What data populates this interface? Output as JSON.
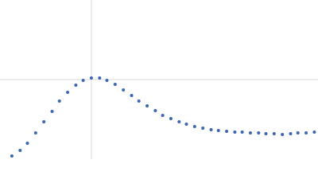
{
  "chart_data": {
    "type": "scatter",
    "x": [
      0.13,
      0.22,
      0.3,
      0.39,
      0.48,
      0.57,
      0.65,
      0.74,
      0.83,
      0.91,
      1.0,
      1.09,
      1.17,
      1.26,
      1.35,
      1.44,
      1.52,
      1.61,
      1.7,
      1.78,
      1.87,
      1.96,
      2.04,
      2.13,
      2.22,
      2.31,
      2.39,
      2.48,
      2.57,
      2.65,
      2.74,
      2.83,
      2.91,
      3.0,
      3.09,
      3.18,
      3.26,
      3.35,
      3.44
    ],
    "values": [
      0.04,
      0.11,
      0.2,
      0.33,
      0.47,
      0.6,
      0.73,
      0.84,
      0.93,
      0.99,
      1.02,
      1.02,
      0.99,
      0.94,
      0.87,
      0.8,
      0.73,
      0.67,
      0.61,
      0.55,
      0.51,
      0.47,
      0.44,
      0.41,
      0.39,
      0.37,
      0.36,
      0.35,
      0.34,
      0.34,
      0.33,
      0.33,
      0.32,
      0.32,
      0.31,
      0.32,
      0.33,
      0.33,
      0.34
    ],
    "color": "#3a66b5",
    "xlim": [
      0,
      3.48
    ],
    "ylim": [
      0,
      2
    ],
    "xticks": [
      1
    ],
    "yticks": [
      1
    ],
    "grid": true
  }
}
